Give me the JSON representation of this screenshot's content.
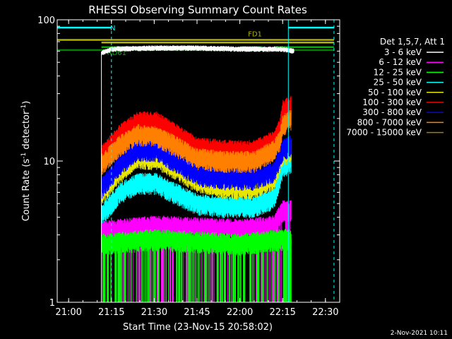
{
  "chart_data": {
    "type": "line",
    "title": "RHESSI Observing Summary Count Rates",
    "xlabel": "Start Time (23-Nov-15 20:58:02)",
    "ylabel": "Count Rate (s",
    "ylabel_sup1": "-1",
    "ylabel_mid": " detector",
    "ylabel_sup2": "-1",
    "ylabel_end": ")",
    "y_scale": "log",
    "ylim": [
      1,
      100
    ],
    "xlim": [
      "20:56",
      "22:35"
    ],
    "x_ticks": [
      "21:00",
      "21:15",
      "21:30",
      "21:45",
      "22:00",
      "22:15",
      "22:30"
    ],
    "y_ticks": [
      "1",
      "10",
      "100"
    ],
    "legend_title": "Det 1,5,7, Att 1",
    "footer_date": "2-Nov-2021 10:11",
    "series": [
      {
        "name": "3 - 6 keV",
        "color": "#ffffff"
      },
      {
        "name": "6 - 12 keV",
        "color": "#ff00ff"
      },
      {
        "name": "12 - 25 keV",
        "color": "#00ff00"
      },
      {
        "name": "25 - 50 keV",
        "color": "#00ffff"
      },
      {
        "name": "50 - 100 keV",
        "color": "#e6e600"
      },
      {
        "name": "100 - 300 keV",
        "color": "#ff0000"
      },
      {
        "name": "300 - 800 keV",
        "color": "#0000ff"
      },
      {
        "name": "800 - 7000 keV",
        "color": "#ff8000"
      },
      {
        "name": "7000 - 15000 keV",
        "color": "#a08000"
      }
    ],
    "band_series": [
      {
        "name": "3 - 6 keV",
        "color": "#ffffff",
        "points": [
          [
            "21:11:30",
            58
          ],
          [
            "21:15",
            62
          ],
          [
            "21:30",
            63
          ],
          [
            "21:45",
            63
          ],
          [
            "22:00",
            62
          ],
          [
            "22:15",
            62
          ],
          [
            "22:19",
            60
          ]
        ]
      },
      {
        "name": "800 - 7000 keV",
        "color": "#ff8000",
        "points": [
          [
            "21:11:30",
            9.5
          ],
          [
            "21:18",
            13
          ],
          [
            "21:24",
            15.5
          ],
          [
            "21:31",
            15
          ],
          [
            "21:37",
            13
          ],
          [
            "21:45",
            10.5
          ],
          [
            "21:55",
            10
          ],
          [
            "22:05",
            10
          ],
          [
            "22:12",
            12
          ],
          [
            "22:14",
            14
          ],
          [
            "22:15",
            18
          ],
          [
            "22:18",
            20
          ]
        ]
      },
      {
        "name": "100 - 300 keV",
        "color": "#ff0000",
        "points": [
          [
            "21:11:30",
            11
          ],
          [
            "21:18",
            15.5
          ],
          [
            "21:24",
            19
          ],
          [
            "21:31",
            19
          ],
          [
            "21:37",
            16
          ],
          [
            "21:45",
            12.5
          ],
          [
            "21:55",
            12
          ],
          [
            "22:05",
            12
          ],
          [
            "22:12",
            14
          ],
          [
            "22:14",
            17
          ],
          [
            "22:15",
            23
          ],
          [
            "22:18",
            25
          ]
        ]
      },
      {
        "name": "50 - 100 keV",
        "color": "#e6e600",
        "points": [
          [
            "21:11:30",
            5.8
          ],
          [
            "21:18",
            8.5
          ],
          [
            "21:24",
            10.5
          ],
          [
            "21:31",
            10.5
          ],
          [
            "21:37",
            9
          ],
          [
            "21:45",
            7.2
          ],
          [
            "21:55",
            6.5
          ],
          [
            "22:05",
            6.5
          ],
          [
            "22:12",
            7.5
          ],
          [
            "22:15",
            11
          ],
          [
            "22:18",
            12
          ]
        ]
      },
      {
        "name": "300 - 800 keV",
        "color": "#0000ff",
        "points": [
          [
            "21:11:30",
            6.5
          ],
          [
            "21:18",
            9.5
          ],
          [
            "21:24",
            12
          ],
          [
            "21:31",
            12
          ],
          [
            "21:37",
            10
          ],
          [
            "21:45",
            8
          ],
          [
            "21:55",
            7.5
          ],
          [
            "22:05",
            7.5
          ],
          [
            "22:12",
            8.5
          ],
          [
            "22:15",
            12
          ],
          [
            "22:18",
            13
          ]
        ]
      },
      {
        "name": "25 - 50 keV",
        "color": "#00ffff",
        "points": [
          [
            "21:11:30",
            4.2
          ],
          [
            "21:18",
            6
          ],
          [
            "21:24",
            7
          ],
          [
            "21:31",
            7
          ],
          [
            "21:37",
            6
          ],
          [
            "21:45",
            5
          ],
          [
            "21:55",
            4.8
          ],
          [
            "22:05",
            4.8
          ],
          [
            "22:12",
            5.5
          ],
          [
            "22:15",
            9
          ],
          [
            "22:18",
            10
          ]
        ]
      },
      {
        "name": "6 - 12 keV",
        "color": "#ff00ff",
        "points": [
          [
            "21:11:30",
            3.2
          ],
          [
            "21:30",
            3.5
          ],
          [
            "22:00",
            3.3
          ],
          [
            "22:12",
            3.5
          ],
          [
            "22:15",
            4.5
          ],
          [
            "22:18",
            4.5
          ]
        ]
      },
      {
        "name": "12 - 25 keV",
        "color": "#00ff00",
        "points": [
          [
            "21:11:30",
            2.6
          ],
          [
            "21:30",
            2.8
          ],
          [
            "22:00",
            2.6
          ],
          [
            "22:15",
            2.8
          ],
          [
            "22:18",
            2.8
          ]
        ]
      }
    ],
    "flag_bars": [
      {
        "label": "N",
        "color": "#00ffff",
        "level": 88,
        "segments": [
          [
            "20:56",
            "21:15"
          ],
          [
            "22:17",
            "22:33"
          ]
        ]
      },
      {
        "label": "FD1",
        "color": "#b0b000",
        "level": 72,
        "segments": [
          [
            "20:56",
            "22:33"
          ]
        ]
      },
      {
        "label": "FD1",
        "color": "#b0b000",
        "level": 69,
        "segments": [
          [
            "21:11:30",
            "22:33"
          ]
        ]
      },
      {
        "label": "RD61",
        "color": "#00b000",
        "level": 64,
        "segments": [
          [
            "21:11:30",
            "21:25"
          ],
          [
            "21:35",
            "21:50"
          ],
          [
            "22:00",
            "22:08"
          ],
          [
            "22:12",
            "22:33"
          ]
        ]
      },
      {
        "label": "RD61",
        "color": "#008000",
        "level": 61,
        "segments": [
          [
            "20:56",
            "22:33"
          ]
        ]
      }
    ],
    "vlines_dashed": [
      "21:15",
      "22:33"
    ],
    "vlines_solid": [
      "20:56",
      "22:17"
    ]
  }
}
